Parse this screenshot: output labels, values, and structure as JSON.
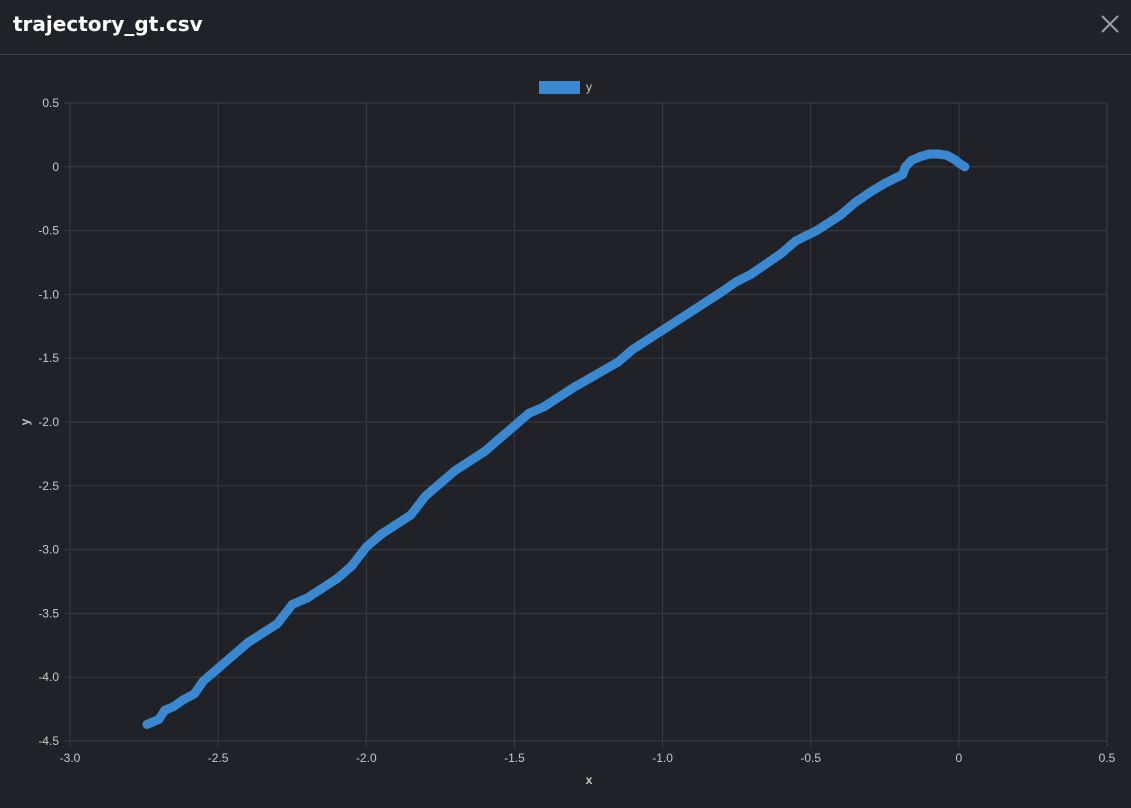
{
  "window": {
    "title": "trajectory_gt.csv",
    "close_icon": "close-icon"
  },
  "colors": {
    "background": "#202227",
    "grid": "#3a3d44",
    "series": "#3a88d0",
    "text": "#c8c8c8"
  },
  "chart_data": {
    "type": "scatter",
    "title": "",
    "xlabel": "x",
    "ylabel": "y",
    "xlim": [
      -3.0,
      0.5
    ],
    "ylim": [
      -4.5,
      0.5
    ],
    "x_ticks": [
      -3.0,
      -2.5,
      -2.0,
      -1.5,
      -1.0,
      -0.5,
      0,
      0.5
    ],
    "x_tick_labels": [
      "-3.0",
      "-2.5",
      "-2.0",
      "-1.5",
      "-1.0",
      "-0.5",
      "0",
      "0.5"
    ],
    "y_ticks": [
      0.5,
      0,
      -0.5,
      -1.0,
      -1.5,
      -2.0,
      -2.5,
      -3.0,
      -3.5,
      -4.0,
      -4.5
    ],
    "y_tick_labels": [
      "0.5",
      "0",
      "-0.5",
      "-1.0",
      "-1.5",
      "-2.0",
      "-2.5",
      "-3.0",
      "-3.5",
      "-4.0",
      "-4.5"
    ],
    "grid": true,
    "legend_position": "top-center",
    "series": [
      {
        "name": "y",
        "color": "#3a88d0",
        "x": [
          0.02,
          0.0,
          -0.01,
          -0.04,
          -0.07,
          -0.1,
          -0.13,
          -0.16,
          -0.18,
          -0.19,
          -0.25,
          -0.3,
          -0.35,
          -0.4,
          -0.48,
          -0.55,
          -0.6,
          -0.7,
          -0.75,
          -0.8,
          -0.9,
          -1.0,
          -1.1,
          -1.15,
          -1.3,
          -1.4,
          -1.45,
          -1.5,
          -1.6,
          -1.7,
          -1.8,
          -1.85,
          -1.95,
          -2.0,
          -2.05,
          -2.1,
          -2.2,
          -2.25,
          -2.3,
          -2.4,
          -2.45,
          -2.5,
          -2.55,
          -2.58,
          -2.62,
          -2.65,
          -2.68,
          -2.7,
          -2.72,
          -2.74
        ],
        "y": [
          0.0,
          0.03,
          0.05,
          0.09,
          0.1,
          0.1,
          0.08,
          0.05,
          0.0,
          -0.06,
          -0.13,
          -0.2,
          -0.28,
          -0.38,
          -0.5,
          -0.58,
          -0.68,
          -0.84,
          -0.9,
          -0.98,
          -1.13,
          -1.28,
          -1.43,
          -1.53,
          -1.73,
          -1.88,
          -1.93,
          -2.03,
          -2.23,
          -2.38,
          -2.58,
          -2.73,
          -2.88,
          -2.98,
          -3.13,
          -3.23,
          -3.38,
          -3.43,
          -3.58,
          -3.73,
          -3.83,
          -3.93,
          -4.03,
          -4.13,
          -4.18,
          -4.23,
          -4.26,
          -4.33,
          -4.35,
          -4.37
        ]
      }
    ]
  }
}
